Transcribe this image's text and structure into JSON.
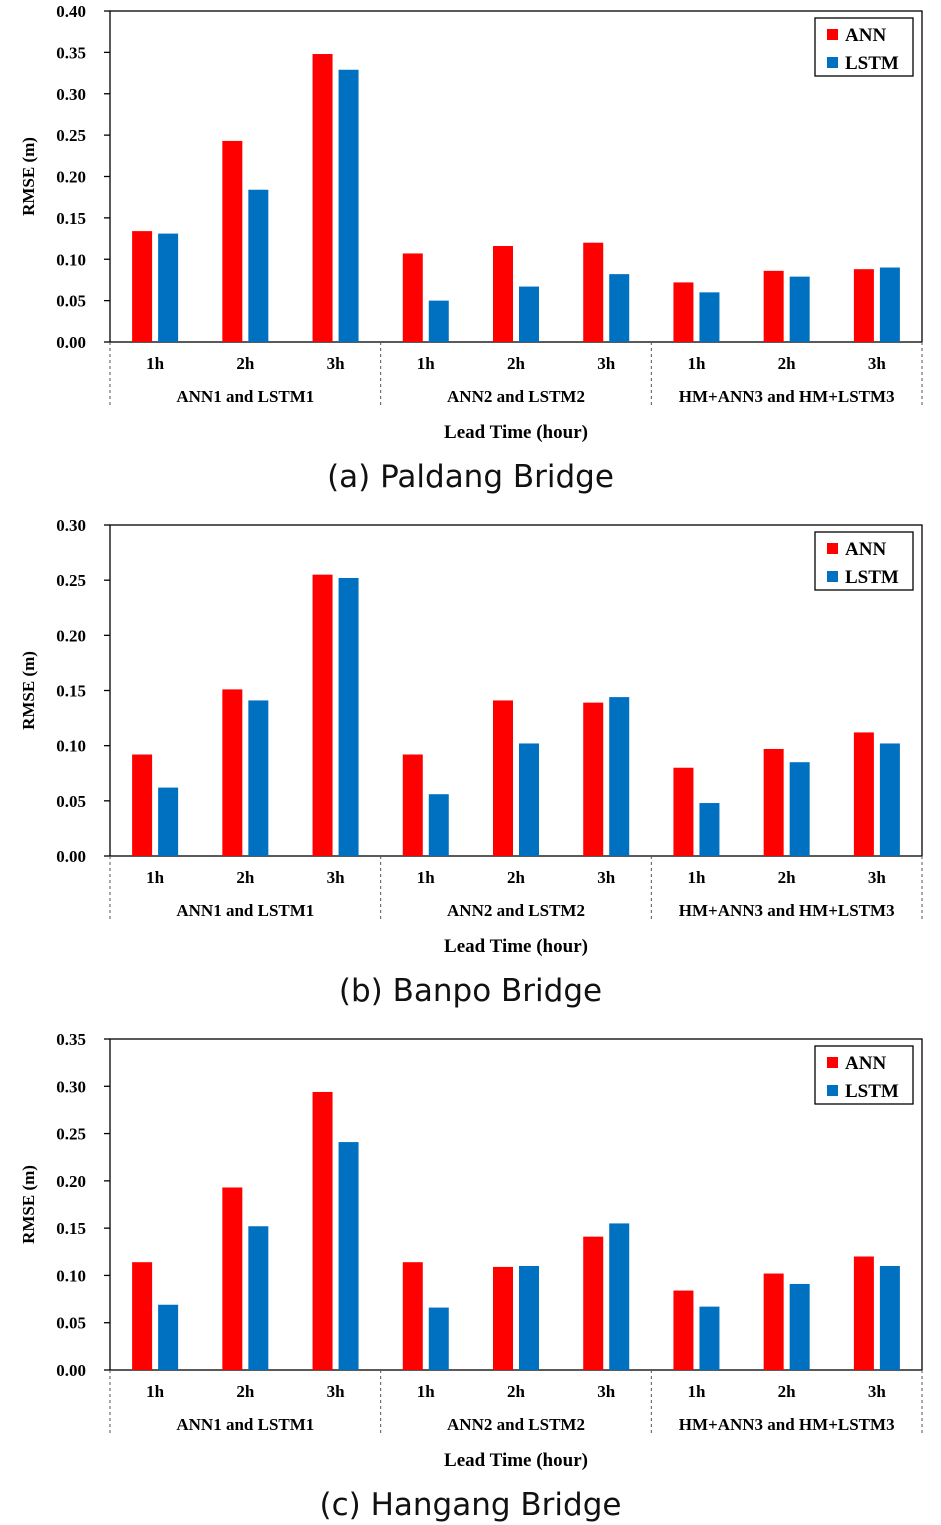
{
  "colors": {
    "ann": "#ff0000",
    "lstm": "#0070c0",
    "axis": "#000000",
    "divider": "#555555"
  },
  "chart_data": [
    {
      "type": "bar",
      "title": "(a) Paldang Bridge",
      "ylabel": "RMSE (m)",
      "xlabel": "Lead Time (hour)",
      "ylim": [
        0,
        0.4
      ],
      "yticks": [
        "0.00",
        "0.05",
        "0.10",
        "0.15",
        "0.20",
        "0.25",
        "0.30",
        "0.35",
        "0.40"
      ],
      "tick_step": 0.05,
      "categories": [
        "1h",
        "2h",
        "3h",
        "1h",
        "2h",
        "3h",
        "1h",
        "2h",
        "3h"
      ],
      "groups": [
        "ANN1 and LSTM1",
        "ANN2 and LSTM2",
        "HM+ANN3 and HM+LSTM3"
      ],
      "legend": [
        "ANN",
        "LSTM"
      ],
      "legend_position": "top-right",
      "series": [
        {
          "name": "ANN",
          "values": [
            0.134,
            0.243,
            0.348,
            0.107,
            0.116,
            0.12,
            0.072,
            0.086,
            0.088
          ]
        },
        {
          "name": "LSTM",
          "values": [
            0.131,
            0.184,
            0.329,
            0.05,
            0.067,
            0.082,
            0.06,
            0.079,
            0.09
          ]
        }
      ]
    },
    {
      "type": "bar",
      "title": "(b) Banpo Bridge",
      "ylabel": "RMSE (m)",
      "xlabel": "Lead Time (hour)",
      "ylim": [
        0,
        0.3
      ],
      "yticks": [
        "0.00",
        "0.05",
        "0.10",
        "0.15",
        "0.20",
        "0.25",
        "0.30"
      ],
      "tick_step": 0.05,
      "categories": [
        "1h",
        "2h",
        "3h",
        "1h",
        "2h",
        "3h",
        "1h",
        "2h",
        "3h"
      ],
      "groups": [
        "ANN1 and LSTM1",
        "ANN2 and LSTM2",
        "HM+ANN3 and HM+LSTM3"
      ],
      "legend": [
        "ANN",
        "LSTM"
      ],
      "legend_position": "top-right",
      "series": [
        {
          "name": "ANN",
          "values": [
            0.092,
            0.151,
            0.255,
            0.092,
            0.141,
            0.139,
            0.08,
            0.097,
            0.112
          ]
        },
        {
          "name": "LSTM",
          "values": [
            0.062,
            0.141,
            0.252,
            0.056,
            0.102,
            0.144,
            0.048,
            0.085,
            0.102
          ]
        }
      ]
    },
    {
      "type": "bar",
      "title": "(c) Hangang Bridge",
      "ylabel": "RMSE (m)",
      "xlabel": "Lead Time (hour)",
      "ylim": [
        0,
        0.35
      ],
      "yticks": [
        "0.00",
        "0.05",
        "0.10",
        "0.15",
        "0.20",
        "0.25",
        "0.30",
        "0.35"
      ],
      "tick_step": 0.05,
      "categories": [
        "1h",
        "2h",
        "3h",
        "1h",
        "2h",
        "3h",
        "1h",
        "2h",
        "3h"
      ],
      "groups": [
        "ANN1 and LSTM1",
        "ANN2 and LSTM2",
        "HM+ANN3 and HM+LSTM3"
      ],
      "legend": [
        "ANN",
        "LSTM"
      ],
      "legend_position": "top-right",
      "series": [
        {
          "name": "ANN",
          "values": [
            0.114,
            0.193,
            0.294,
            0.114,
            0.109,
            0.141,
            0.084,
            0.102,
            0.12
          ]
        },
        {
          "name": "LSTM",
          "values": [
            0.069,
            0.152,
            0.241,
            0.066,
            0.11,
            0.155,
            0.067,
            0.091,
            0.11
          ]
        }
      ]
    }
  ]
}
